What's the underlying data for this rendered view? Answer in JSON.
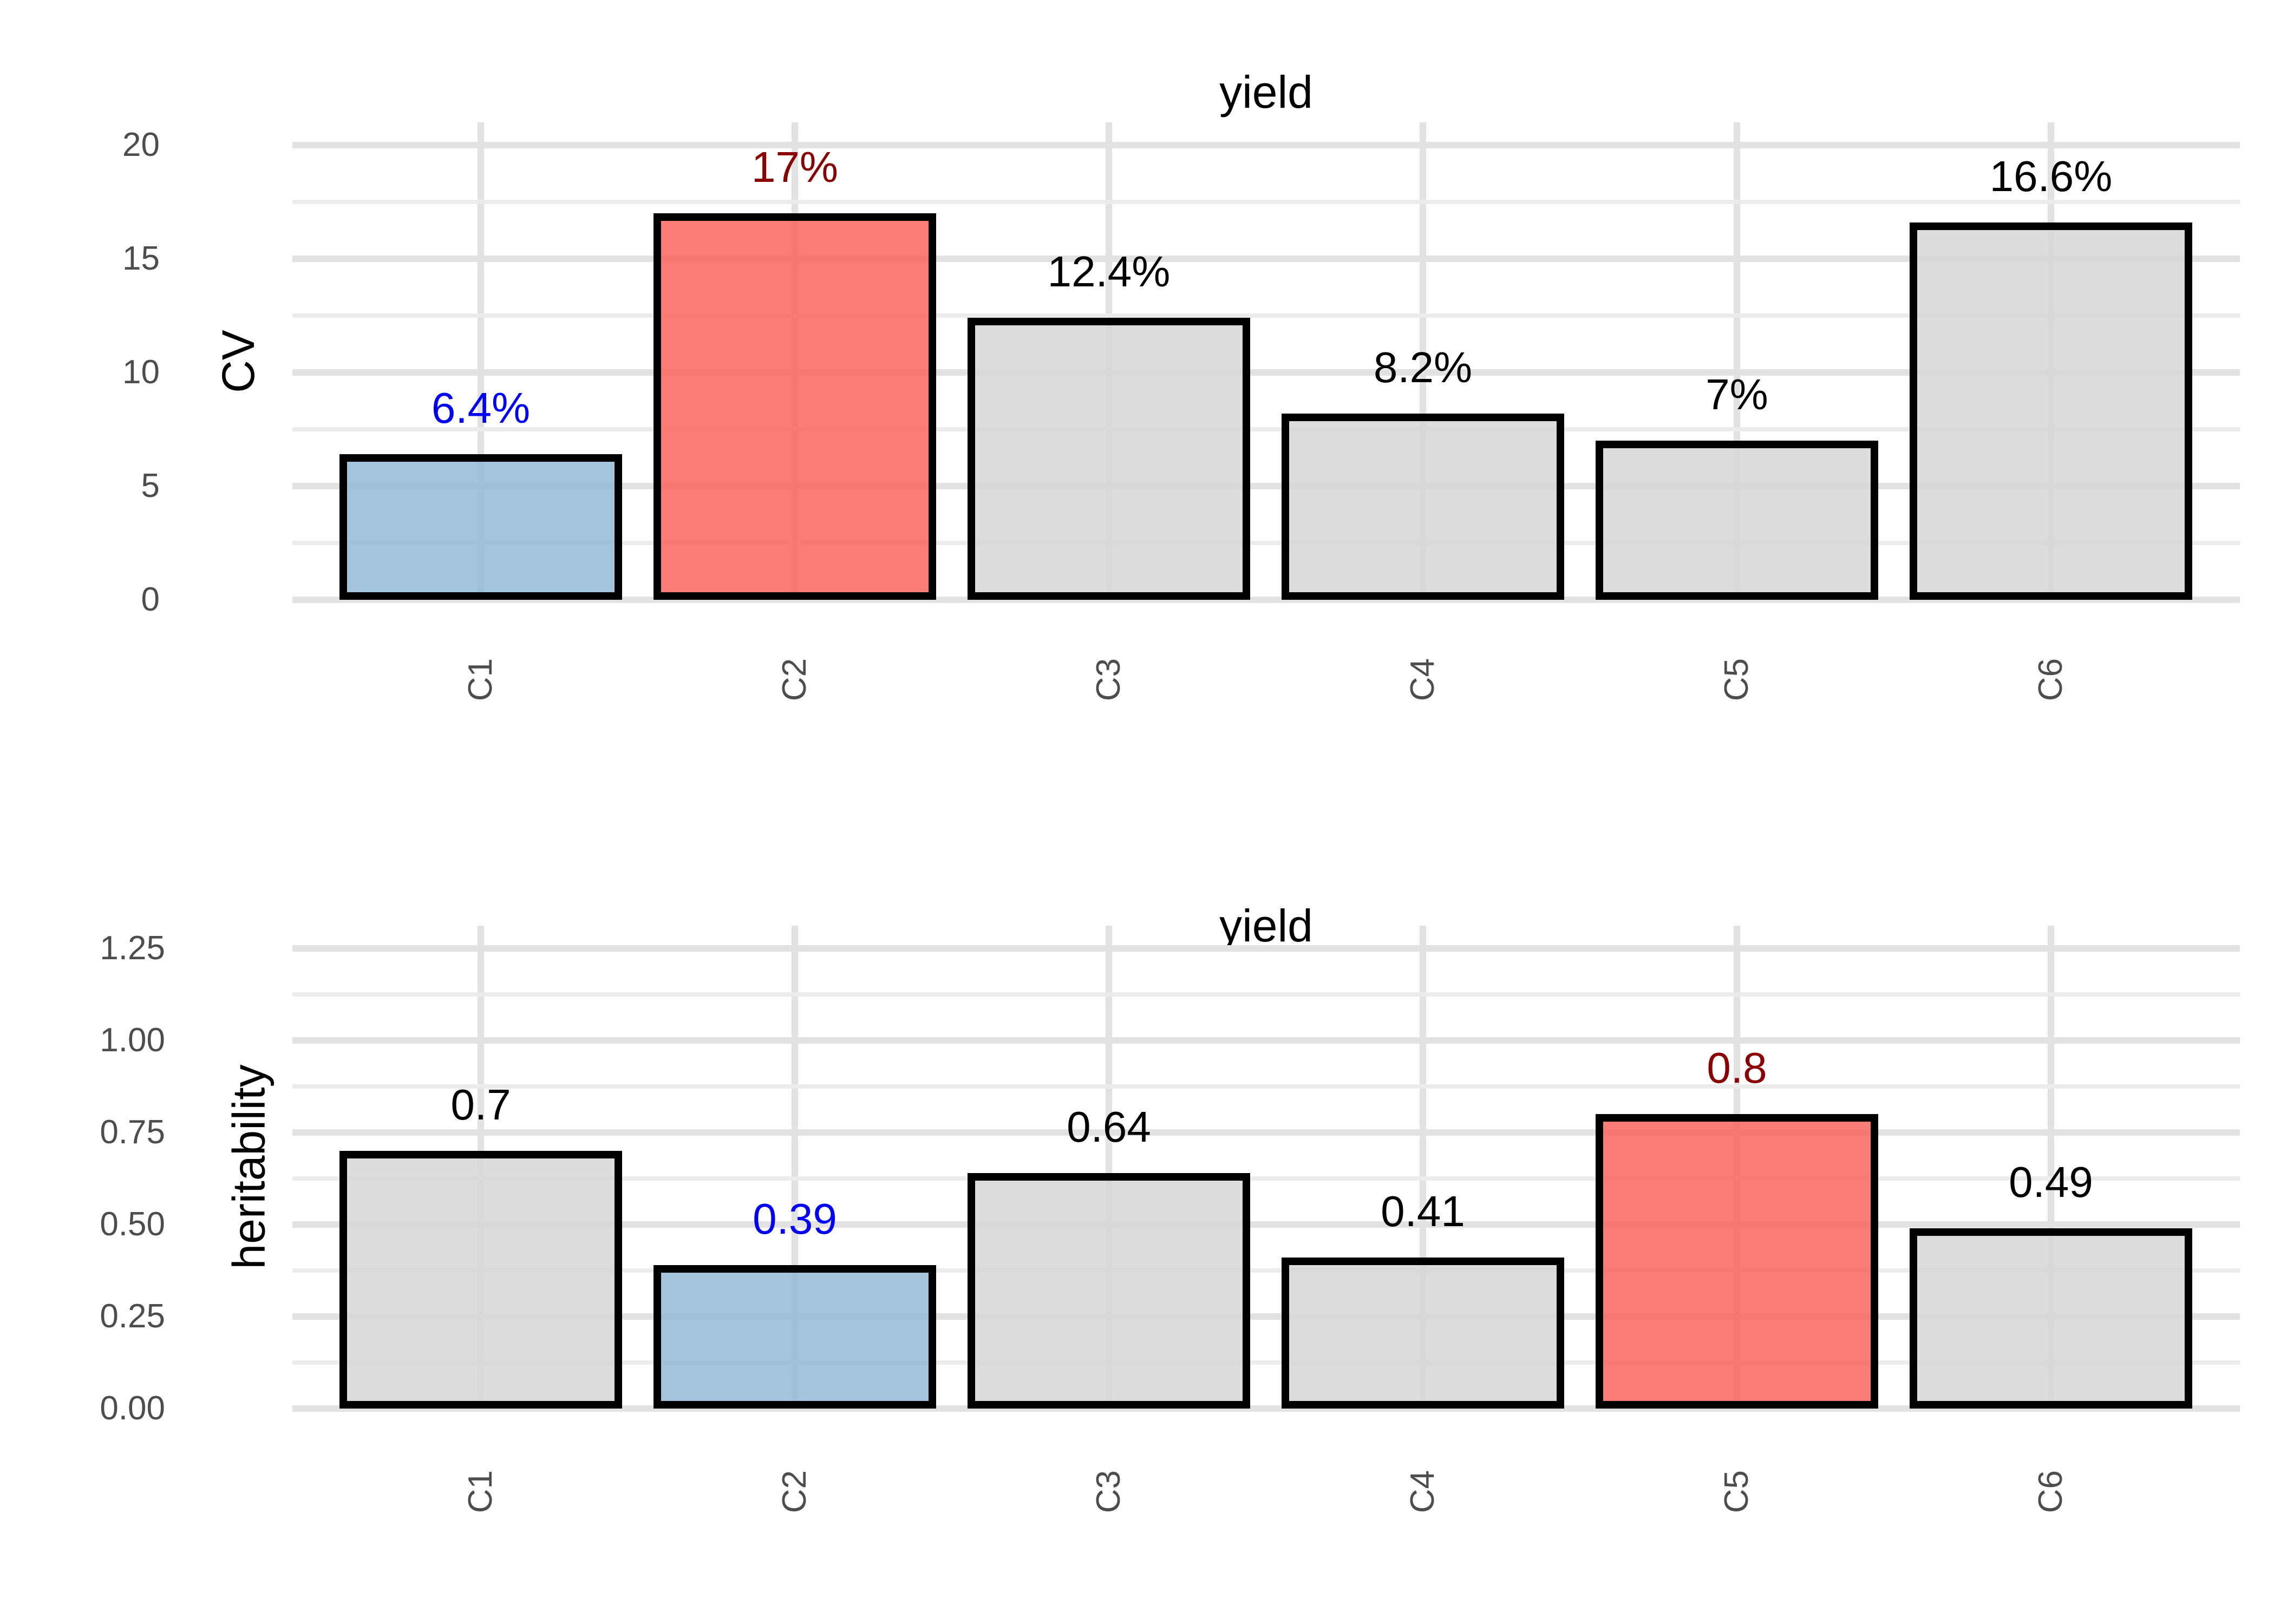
{
  "figure": {
    "background": "#ffffff"
  },
  "chart_data": [
    {
      "type": "bar",
      "title": "yield",
      "ylabel": "CV",
      "xlabel": "",
      "categories": [
        "C1",
        "C2",
        "C3",
        "C4",
        "C5",
        "C6"
      ],
      "values": [
        6.4,
        17,
        12.4,
        8.2,
        7,
        16.6
      ],
      "bar_labels": [
        "6.4%",
        "17%",
        "12.4%",
        "8.2%",
        "7%",
        "16.6%"
      ],
      "bar_label_colors": [
        "#0000ff",
        "#8b0000",
        "#000000",
        "#000000",
        "#000000",
        "#000000"
      ],
      "bar_fill_keys": [
        "lowlight",
        "highlight",
        "neutral",
        "neutral",
        "neutral",
        "neutral"
      ],
      "ylim": [
        0,
        21
      ],
      "yticks": [
        0,
        5,
        10,
        15,
        20
      ],
      "ytick_labels": [
        "0",
        "5",
        "10",
        "15",
        "20"
      ],
      "minor_ticks": [
        2.5,
        7.5,
        12.5,
        17.5
      ],
      "grid": true,
      "legend": "none"
    },
    {
      "type": "bar",
      "title": "yield",
      "ylabel": "heritability",
      "xlabel": "",
      "categories": [
        "C1",
        "C2",
        "C3",
        "C4",
        "C5",
        "C6"
      ],
      "values": [
        0.7,
        0.39,
        0.64,
        0.41,
        0.8,
        0.49
      ],
      "bar_labels": [
        "0.7",
        "0.39",
        "0.64",
        "0.41",
        "0.8",
        "0.49"
      ],
      "bar_label_colors": [
        "#000000",
        "#0000ff",
        "#000000",
        "#000000",
        "#8b0000",
        "#000000"
      ],
      "bar_fill_keys": [
        "neutral",
        "lowlight",
        "neutral",
        "neutral",
        "highlight",
        "neutral"
      ],
      "ylim": [
        0,
        1.3125
      ],
      "yticks": [
        0,
        0.25,
        0.5,
        0.75,
        1.0,
        1.25
      ],
      "ytick_labels": [
        "0.00",
        "0.25",
        "0.50",
        "0.75",
        "1.00",
        "1.25"
      ],
      "minor_ticks": [
        0.125,
        0.375,
        0.625,
        0.875,
        1.125
      ],
      "grid": true,
      "legend": "none"
    }
  ],
  "colors": {
    "bar_fills": {
      "lowlight": "rgba(148,184,214,0.85)",
      "highlight": "rgba(250,100,94,0.85)",
      "neutral": "rgba(214,214,214,0.85)"
    },
    "bar_border": "#000000",
    "grid_major": "#e2e2e2",
    "grid_minor": "#ececec",
    "tick_text": "#4d4d4d",
    "title_text": "#000000"
  }
}
